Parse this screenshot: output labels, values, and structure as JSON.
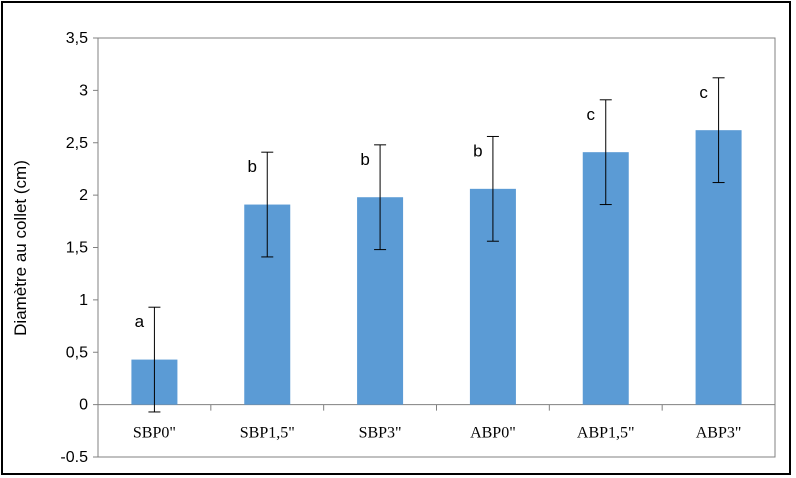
{
  "chart_data": {
    "type": "bar",
    "title": "",
    "xlabel": "",
    "ylabel": "Diamètre au collet (cm)",
    "categories": [
      "SBP0\"",
      "SBP1,5\"",
      "SBP3\"",
      "ABP0\"",
      "ABP1,5\"",
      "ABP3\""
    ],
    "values": [
      0.43,
      1.91,
      1.98,
      2.06,
      2.41,
      2.62
    ],
    "errors": [
      0.5,
      0.5,
      0.5,
      0.5,
      0.5,
      0.5
    ],
    "significance_letters": [
      "a",
      "b",
      "b",
      "b",
      "c",
      "c"
    ],
    "ylim": [
      -0.5,
      3.5
    ],
    "yticks": [
      -0.5,
      0,
      0.5,
      1,
      1.5,
      2,
      2.5,
      3,
      3.5
    ],
    "ytick_labels": [
      "-0.5",
      "0",
      "0,5",
      "1",
      "1,5",
      "2",
      "2,5",
      "3",
      "3,5"
    ],
    "grid": false,
    "bar_color": "#5b9bd5",
    "axis_color": "#808080",
    "text_color": "#000000"
  }
}
